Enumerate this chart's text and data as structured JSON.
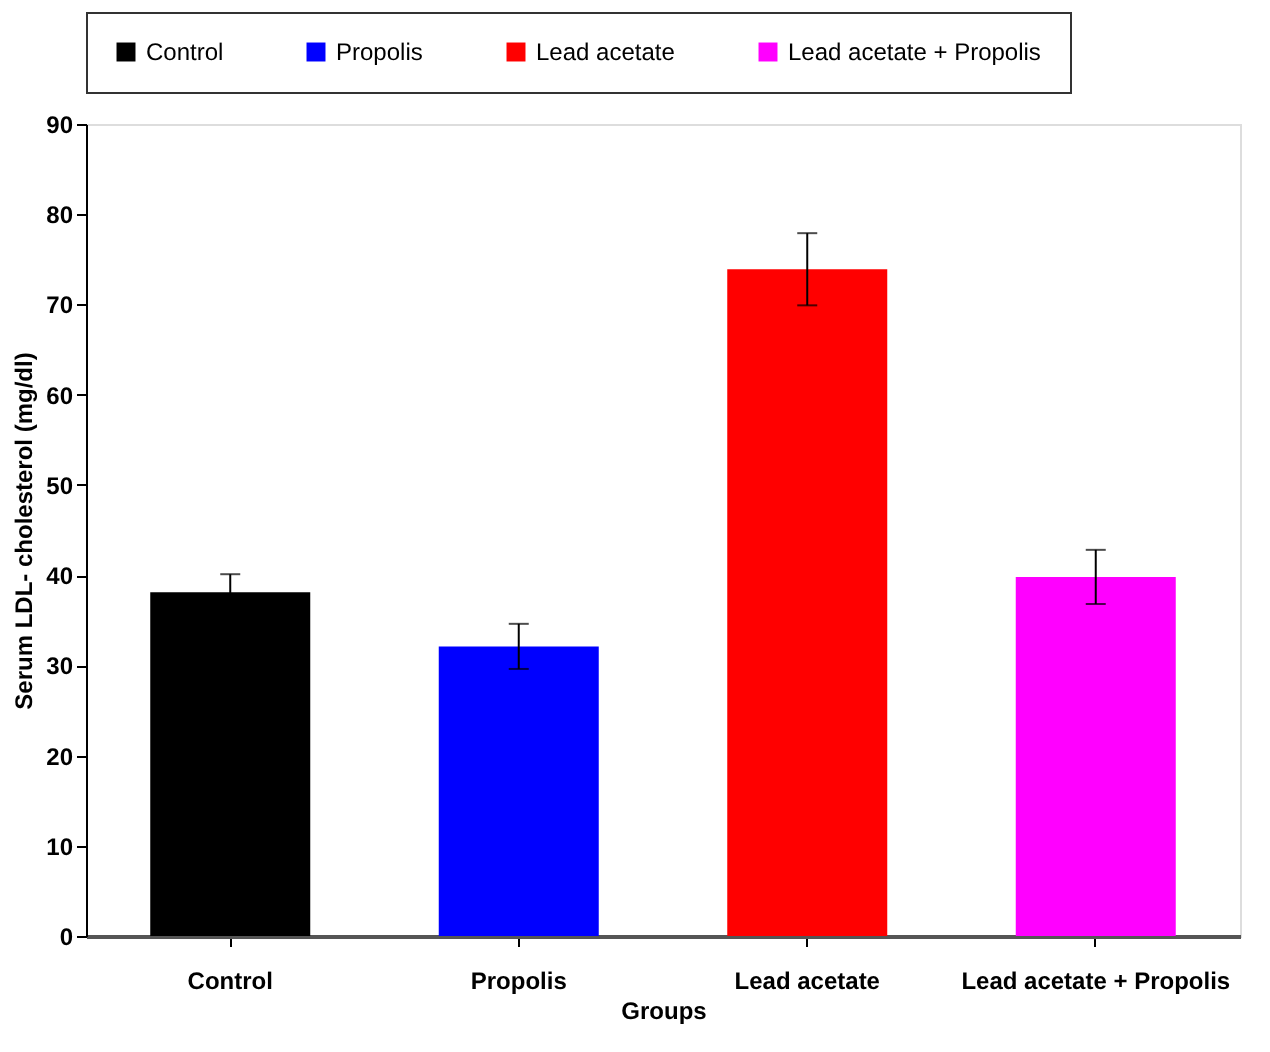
{
  "chart_data": {
    "type": "bar",
    "xlabel": "Groups",
    "ylabel": "Serum LDL- cholesterol (mg/dl)",
    "categories": [
      "Control",
      "Propolis",
      "Lead acetate",
      "Lead acetate + Propolis"
    ],
    "series": [
      {
        "name": "Control",
        "color": "#000000",
        "values": [
          38.1,
          null,
          null,
          null
        ],
        "errors": [
          2,
          null,
          null,
          null
        ]
      },
      {
        "name": "Propolis",
        "color": "#0000ff",
        "values": [
          null,
          32.1,
          null,
          null
        ],
        "errors": [
          null,
          2.5,
          null,
          null
        ]
      },
      {
        "name": "Lead acetate",
        "color": "#ff0000",
        "values": [
          null,
          null,
          73.9,
          null
        ],
        "errors": [
          null,
          null,
          4,
          null
        ]
      },
      {
        "name": "Lead acetate + Propolis",
        "color": "#ff00ff",
        "values": [
          null,
          null,
          null,
          39.8
        ],
        "errors": [
          null,
          null,
          null,
          3
        ]
      }
    ],
    "ylim": [
      0,
      90
    ],
    "yticks": [
      0,
      10,
      20,
      30,
      40,
      50,
      60,
      70,
      80,
      90
    ],
    "grid": false,
    "legend": "top"
  }
}
